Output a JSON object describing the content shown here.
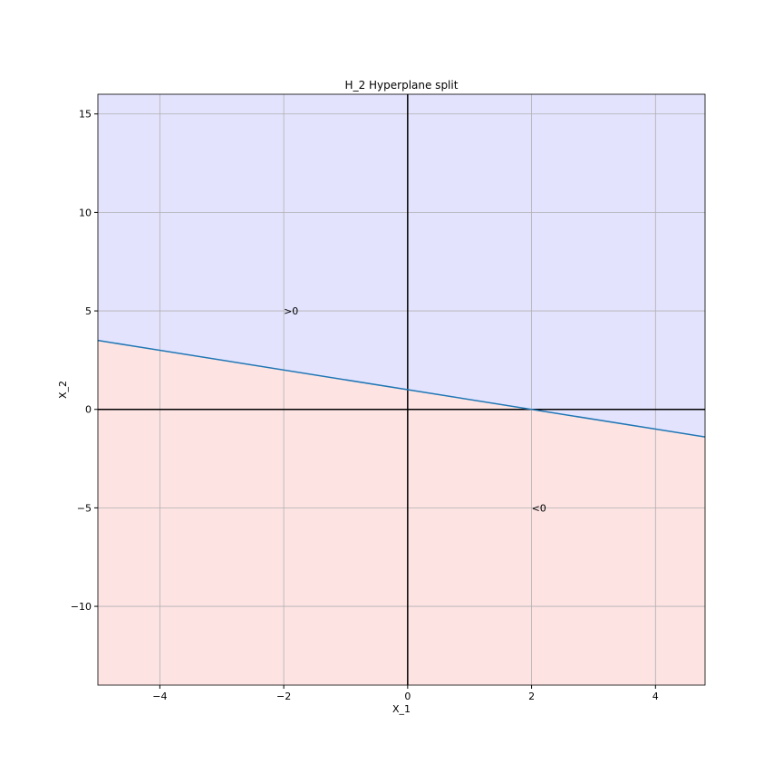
{
  "chart_data": {
    "type": "line",
    "title": "H_2 Hyperplane split",
    "x_label": "X_1",
    "y_label": "X_2",
    "x": [
      -5,
      4.8
    ],
    "series": [
      {
        "color": "#1f77b4",
        "values": [
          3.5,
          -1.4
        ],
        "fill_above": "#e3e3fe",
        "fill_below": "#fee3e3"
      }
    ],
    "xlim": [
      -5,
      4.8
    ],
    "xticks": [
      {
        "value": -4,
        "label": "−4"
      },
      {
        "value": -2,
        "label": "−2"
      },
      0,
      2,
      4
    ],
    "ylim": [
      -14,
      16
    ],
    "yticks": [
      {
        "value": -10,
        "label": "−10"
      },
      {
        "value": -5,
        "label": "−5"
      },
      0,
      5,
      10,
      15
    ],
    "axhline": 0,
    "axvline": 0,
    "grid": true,
    "annotations": [
      {
        "text": ">0",
        "x": -2,
        "y": 5
      },
      {
        "text": "<0",
        "x": 2,
        "y": -5
      }
    ]
  }
}
